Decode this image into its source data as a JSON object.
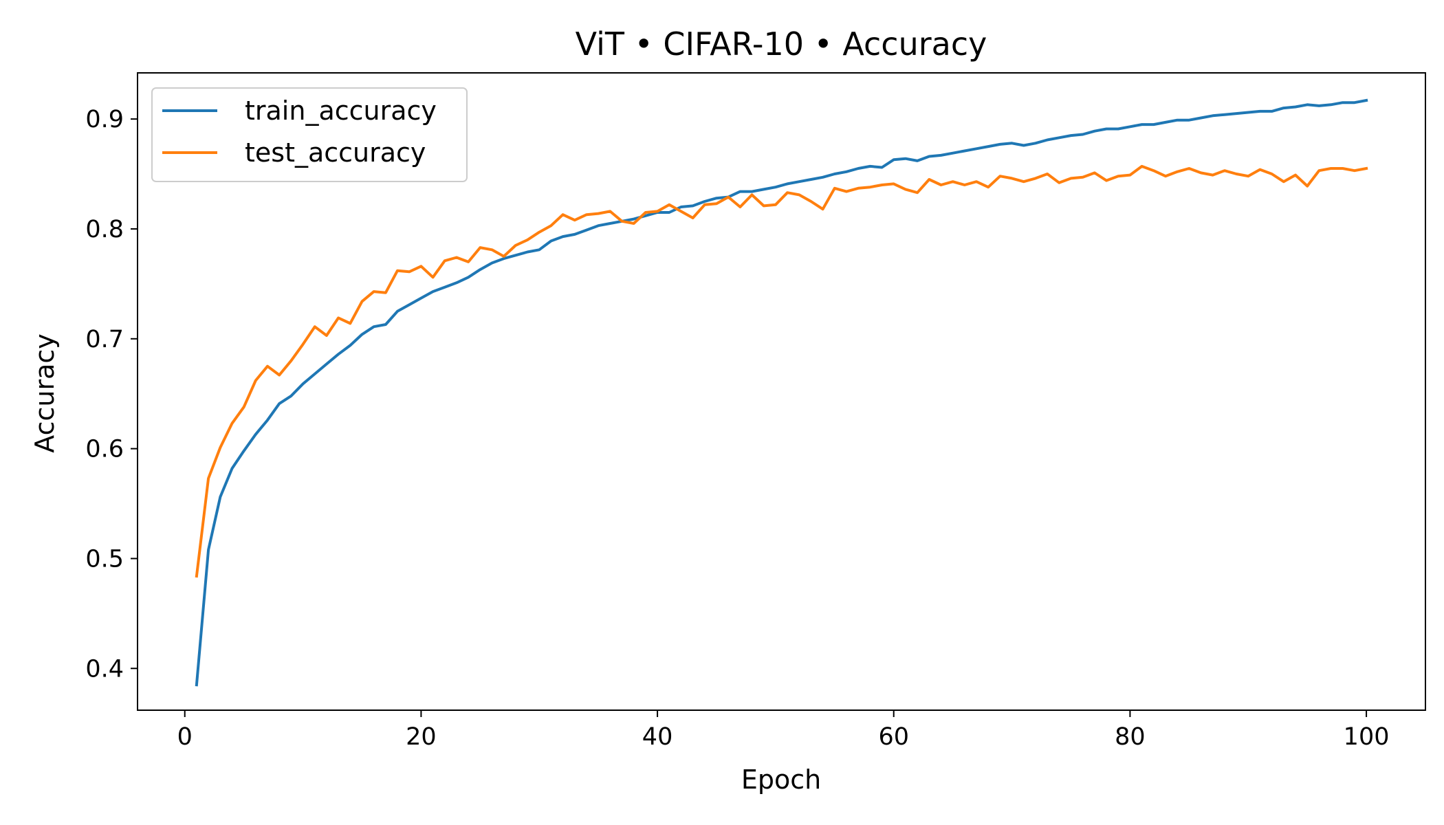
{
  "chart_data": {
    "type": "line",
    "title": "ViT • CIFAR-10 • Accuracy",
    "xlabel": "Epoch",
    "ylabel": "Accuracy",
    "xlim": [
      -4,
      105
    ],
    "ylim": [
      0.362,
      0.942
    ],
    "xticks": [
      0,
      20,
      40,
      60,
      80,
      100
    ],
    "yticks": [
      0.4,
      0.5,
      0.6,
      0.7,
      0.8,
      0.9
    ],
    "legend_position": "upper-left",
    "grid": false,
    "x": [
      1,
      2,
      3,
      4,
      5,
      6,
      7,
      8,
      9,
      10,
      11,
      12,
      13,
      14,
      15,
      16,
      17,
      18,
      19,
      20,
      21,
      22,
      23,
      24,
      25,
      26,
      27,
      28,
      29,
      30,
      31,
      32,
      33,
      34,
      35,
      36,
      37,
      38,
      39,
      40,
      41,
      42,
      43,
      44,
      45,
      46,
      47,
      48,
      49,
      50,
      51,
      52,
      53,
      54,
      55,
      56,
      57,
      58,
      59,
      60,
      61,
      62,
      63,
      64,
      65,
      66,
      67,
      68,
      69,
      70,
      71,
      72,
      73,
      74,
      75,
      76,
      77,
      78,
      79,
      80,
      81,
      82,
      83,
      84,
      85,
      86,
      87,
      88,
      89,
      90,
      91,
      92,
      93,
      94,
      95,
      96,
      97,
      98,
      99,
      100
    ],
    "series": [
      {
        "name": "train_accuracy",
        "color": "#1f77b4",
        "values": [
          0.385,
          0.508,
          0.556,
          0.582,
          0.598,
          0.613,
          0.626,
          0.641,
          0.648,
          0.659,
          0.668,
          0.677,
          0.686,
          0.694,
          0.704,
          0.711,
          0.713,
          0.725,
          0.731,
          0.737,
          0.743,
          0.747,
          0.751,
          0.756,
          0.763,
          0.769,
          0.773,
          0.776,
          0.779,
          0.781,
          0.789,
          0.793,
          0.795,
          0.799,
          0.803,
          0.805,
          0.807,
          0.809,
          0.812,
          0.815,
          0.815,
          0.82,
          0.821,
          0.825,
          0.828,
          0.829,
          0.834,
          0.834,
          0.836,
          0.838,
          0.841,
          0.843,
          0.845,
          0.847,
          0.85,
          0.852,
          0.855,
          0.857,
          0.856,
          0.863,
          0.864,
          0.862,
          0.866,
          0.867,
          0.869,
          0.871,
          0.873,
          0.875,
          0.877,
          0.878,
          0.876,
          0.878,
          0.881,
          0.883,
          0.885,
          0.886,
          0.889,
          0.891,
          0.891,
          0.893,
          0.895,
          0.895,
          0.897,
          0.899,
          0.899,
          0.901,
          0.903,
          0.904,
          0.905,
          0.906,
          0.907,
          0.907,
          0.91,
          0.911,
          0.913,
          0.912,
          0.913,
          0.915,
          0.915,
          0.917
        ]
      },
      {
        "name": "test_accuracy",
        "color": "#ff7f0e",
        "values": [
          0.484,
          0.573,
          0.601,
          0.623,
          0.638,
          0.662,
          0.675,
          0.667,
          0.68,
          0.695,
          0.711,
          0.703,
          0.719,
          0.714,
          0.734,
          0.743,
          0.742,
          0.762,
          0.761,
          0.766,
          0.756,
          0.771,
          0.774,
          0.77,
          0.783,
          0.781,
          0.775,
          0.785,
          0.79,
          0.797,
          0.803,
          0.813,
          0.808,
          0.813,
          0.814,
          0.816,
          0.807,
          0.805,
          0.815,
          0.816,
          0.822,
          0.816,
          0.81,
          0.822,
          0.823,
          0.829,
          0.82,
          0.831,
          0.821,
          0.822,
          0.833,
          0.831,
          0.825,
          0.818,
          0.837,
          0.834,
          0.837,
          0.838,
          0.84,
          0.841,
          0.836,
          0.833,
          0.845,
          0.84,
          0.843,
          0.84,
          0.843,
          0.838,
          0.848,
          0.846,
          0.843,
          0.846,
          0.85,
          0.842,
          0.846,
          0.847,
          0.851,
          0.844,
          0.848,
          0.849,
          0.857,
          0.853,
          0.848,
          0.852,
          0.855,
          0.851,
          0.849,
          0.853,
          0.85,
          0.848,
          0.854,
          0.85,
          0.843,
          0.849,
          0.839,
          0.853,
          0.855,
          0.855,
          0.853,
          0.855
        ]
      }
    ]
  }
}
